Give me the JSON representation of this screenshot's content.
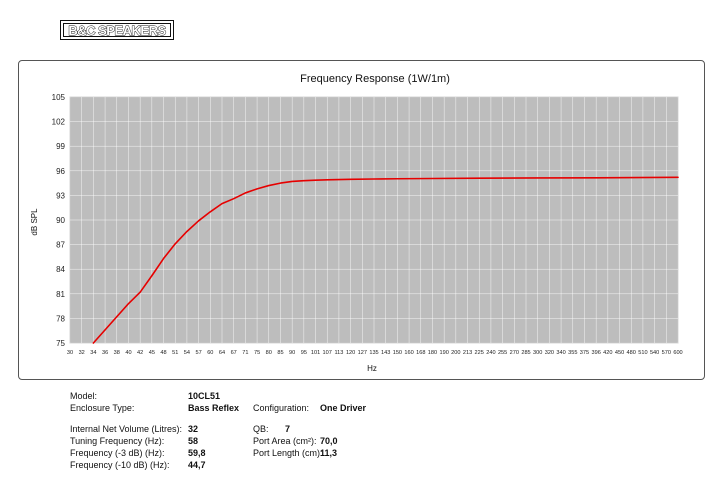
{
  "brand": {
    "logo_text": "B&C SPEAKERS"
  },
  "chart_data": {
    "type": "line",
    "title": "Frequency Response (1W/1m)",
    "xlabel": "Hz",
    "ylabel": "dB SPL",
    "ylim": [
      75,
      105
    ],
    "yticks": [
      75,
      78,
      81,
      84,
      87,
      90,
      93,
      96,
      99,
      102,
      105
    ],
    "xticks": [
      "30",
      "32",
      "34",
      "36",
      "38",
      "40",
      "42",
      "45",
      "48",
      "51",
      "54",
      "57",
      "60",
      "64",
      "67",
      "71",
      "75",
      "80",
      "85",
      "90",
      "95",
      "101",
      "107",
      "113",
      "120",
      "127",
      "135",
      "143",
      "150",
      "160",
      "168",
      "180",
      "190",
      "200",
      "213",
      "225",
      "240",
      "255",
      "270",
      "285",
      "300",
      "320",
      "340",
      "355",
      "375",
      "396",
      "420",
      "450",
      "480",
      "510",
      "540",
      "570",
      "600"
    ],
    "grid": true,
    "series": [
      {
        "color": "#e60000",
        "points": [
          [
            34,
            75
          ],
          [
            36,
            76.6
          ],
          [
            38,
            78.2
          ],
          [
            40,
            79.8
          ],
          [
            42,
            81.2
          ],
          [
            45,
            83.2
          ],
          [
            48,
            85.3
          ],
          [
            51,
            87.1
          ],
          [
            54,
            88.6
          ],
          [
            57,
            89.9
          ],
          [
            60,
            91.0
          ],
          [
            64,
            92.0
          ],
          [
            67,
            92.6
          ],
          [
            71,
            93.3
          ],
          [
            75,
            93.8
          ],
          [
            80,
            94.2
          ],
          [
            85,
            94.5
          ],
          [
            90,
            94.7
          ],
          [
            95,
            94.8
          ],
          [
            101,
            94.85
          ],
          [
            107,
            94.9
          ],
          [
            113,
            94.93
          ],
          [
            120,
            94.96
          ],
          [
            135,
            95.0
          ],
          [
            150,
            95.03
          ],
          [
            180,
            95.06
          ],
          [
            225,
            95.1
          ],
          [
            300,
            95.13
          ],
          [
            400,
            95.15
          ],
          [
            600,
            95.2
          ]
        ]
      }
    ]
  },
  "specs": {
    "model_label": "Model:",
    "model_value": "10CL51",
    "enclosure_label": "Enclosure Type:",
    "enclosure_value": "Bass Reflex",
    "configuration_label": "Configuration:",
    "configuration_value": "One Driver",
    "volume_label": "Internal Net Volume (Litres):",
    "volume_value": "32",
    "qb_label": "QB:",
    "qb_value": "7",
    "tuning_label": "Tuning Frequency (Hz):",
    "tuning_value": "58",
    "port_area_label": "Port Area (cm²):",
    "port_area_value": "70,0",
    "f3_label": "Frequency (-3 dB) (Hz):",
    "f3_value": "59,8",
    "port_length_label": "Port Length (cm):",
    "port_length_value": "11,3",
    "f10_label": "Frequency (-10 dB) (Hz):",
    "f10_value": "44,7"
  }
}
